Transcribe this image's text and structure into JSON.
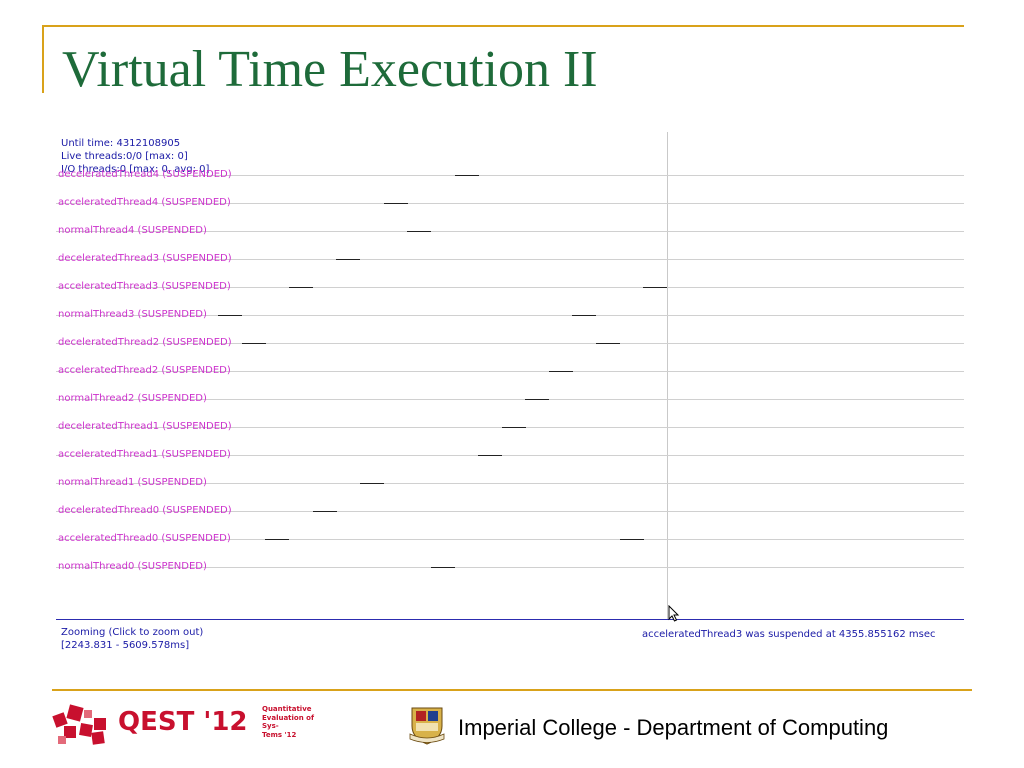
{
  "slide": {
    "title": "Virtual Time Execution II"
  },
  "info": {
    "until_time": "Until time: 4312108905",
    "live_threads": "Live threads:0/0 [max: 0]",
    "io_threads": "I/O threads:0 [max: 0, avg: 0]"
  },
  "threads": [
    "deceleratedThread4 (SUSPENDED)",
    "acceleratedThread4 (SUSPENDED)",
    "normalThread4 (SUSPENDED)",
    "deceleratedThread3 (SUSPENDED)",
    "acceleratedThread3 (SUSPENDED)",
    "normalThread3 (SUSPENDED)",
    "deceleratedThread2 (SUSPENDED)",
    "acceleratedThread2 (SUSPENDED)",
    "normalThread2 (SUSPENDED)",
    "deceleratedThread1 (SUSPENDED)",
    "acceleratedThread1 (SUSPENDED)",
    "normalThread1 (SUSPENDED)",
    "deceleratedThread0 (SUSPENDED)",
    "acceleratedThread0 (SUSPENDED)",
    "normalThread0 (SUSPENDED)"
  ],
  "footer_info": {
    "zooming": "Zooming (Click to zoom out)",
    "range": "[2243.831 - 5609.578ms]",
    "status": "acceleratedThread3 was suspended at 4355.855162 msec"
  },
  "footer": {
    "qest": "QEST '12",
    "qest_side": [
      "Quantitative",
      "Evaluation of",
      "Sys-",
      "Tems  '12"
    ],
    "institution": "Imperial College - Department of Computing"
  },
  "colors": {
    "title": "#1e6b3a",
    "accent": "#d9a21a",
    "thread_label": "#cc33cc",
    "info": "#1a1aa6",
    "qest": "#c8102e"
  }
}
